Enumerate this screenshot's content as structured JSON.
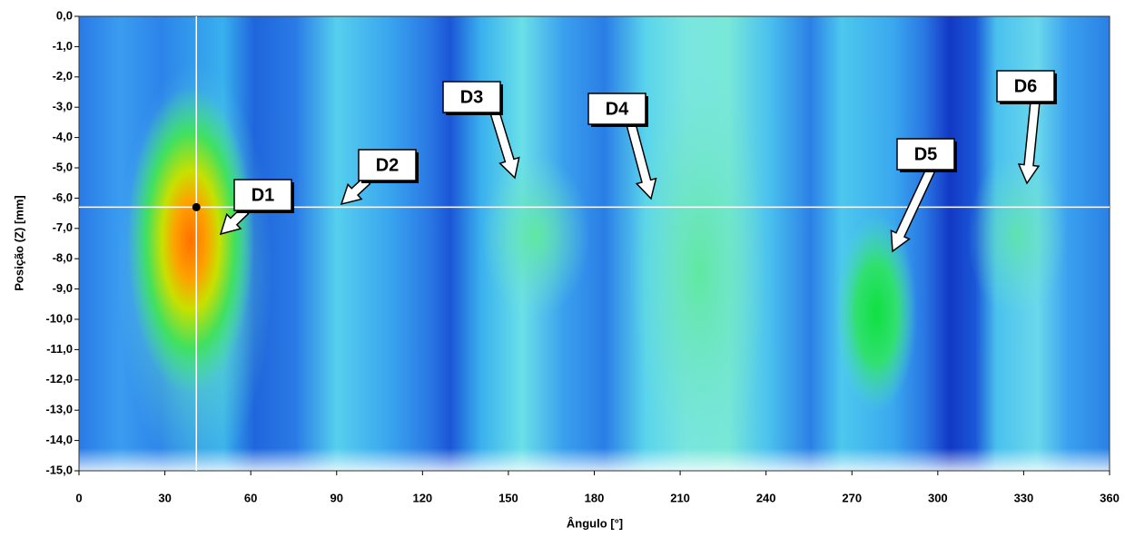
{
  "chart_data": {
    "type": "heatmap",
    "xlabel": "Ângulo [°]",
    "ylabel": "Posição (Z) [mm]",
    "xlim": [
      0,
      360
    ],
    "ylim": [
      -15,
      0
    ],
    "xticks": [
      0,
      30,
      60,
      90,
      120,
      150,
      180,
      210,
      240,
      270,
      300,
      330,
      360
    ],
    "yticks": [
      {
        "value": 0,
        "label": "0,0"
      },
      {
        "value": -1,
        "label": "-1,0"
      },
      {
        "value": -2,
        "label": "-2,0"
      },
      {
        "value": -3,
        "label": "-3,0"
      },
      {
        "value": -4,
        "label": "-4,0"
      },
      {
        "value": -5,
        "label": "-5,0"
      },
      {
        "value": -6,
        "label": "-6,0"
      },
      {
        "value": -7,
        "label": "-7,0"
      },
      {
        "value": -8,
        "label": "-8,0"
      },
      {
        "value": -9,
        "label": "-9,0"
      },
      {
        "value": -10,
        "label": "-10,0"
      },
      {
        "value": -11,
        "label": "-11,0"
      },
      {
        "value": -12,
        "label": "-12,0"
      },
      {
        "value": -13,
        "label": "-13,0"
      },
      {
        "value": -14,
        "label": "-14,0"
      },
      {
        "value": -15,
        "label": "-15,0"
      }
    ],
    "crosshair": {
      "x": 41,
      "y": -6.3
    },
    "annotations": [
      "D1",
      "D2",
      "D3",
      "D4",
      "D5",
      "D6"
    ]
  }
}
